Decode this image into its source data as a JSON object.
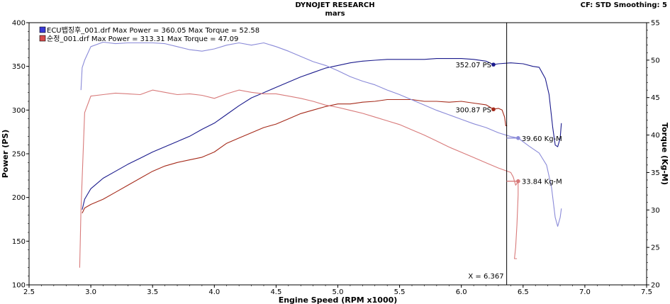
{
  "header": {
    "title": "DYNOJET RESEARCH",
    "subtitle": "mars",
    "settings": "CF: STD  Smoothing: 5"
  },
  "chart_data": {
    "type": "line",
    "xlabel": "Engine Speed (RPM x1000)",
    "ylabel_left": "Power (PS)",
    "ylabel_right": "Torque (Kg-M)",
    "xlim": [
      2.5,
      7.5
    ],
    "ylim_left": [
      100,
      400
    ],
    "ylim_right": [
      20,
      55
    ],
    "x_ticks": [
      "2.5",
      "3.0",
      "3.5",
      "4.0",
      "4.5",
      "5.0",
      "5.5",
      "6.0",
      "6.5",
      "7.0",
      "7.5"
    ],
    "y_ticks_left": [
      "100",
      "150",
      "200",
      "250",
      "300",
      "350",
      "400"
    ],
    "y_ticks_right": [
      "20",
      "25",
      "30",
      "35",
      "40",
      "45",
      "50",
      "55"
    ],
    "grid": true,
    "legend": [
      {
        "marker_color": "#3a3ad8",
        "text": "ECU뱁징후_001.drf Max Power = 360.05    Max Torque = 52.58"
      },
      {
        "marker_color": "#d84a4a",
        "text": "순정_001.drf Max Power = 313.31    Max Torque = 47.09"
      }
    ],
    "cursor": {
      "x": 6.367,
      "label": "X = 6.367"
    },
    "annotations": [
      {
        "text": "352.07 PS",
        "series": "power_ecu",
        "at_x": 6.26,
        "value": 352.07
      },
      {
        "text": "300.87 PS",
        "series": "power_stock",
        "at_x": 6.26,
        "value": 300.87
      },
      {
        "text": "39.60 Kg-M",
        "series": "torque_ecu",
        "at_x": 6.46,
        "value": 39.6
      },
      {
        "text": "33.84 Kg-M",
        "series": "torque_stock",
        "at_x": 6.46,
        "value": 33.84
      }
    ],
    "series": [
      {
        "id": "power_ecu",
        "axis": "left",
        "color": "#1a1a8c",
        "points": [
          [
            2.93,
            186
          ],
          [
            2.95,
            198
          ],
          [
            3.0,
            210
          ],
          [
            3.1,
            222
          ],
          [
            3.2,
            230
          ],
          [
            3.3,
            238
          ],
          [
            3.4,
            245
          ],
          [
            3.5,
            252
          ],
          [
            3.6,
            258
          ],
          [
            3.7,
            264
          ],
          [
            3.8,
            270
          ],
          [
            3.9,
            278
          ],
          [
            4.0,
            285
          ],
          [
            4.1,
            295
          ],
          [
            4.2,
            305
          ],
          [
            4.3,
            314
          ],
          [
            4.4,
            320
          ],
          [
            4.5,
            326
          ],
          [
            4.6,
            332
          ],
          [
            4.7,
            338
          ],
          [
            4.8,
            343
          ],
          [
            4.9,
            348
          ],
          [
            5.0,
            351
          ],
          [
            5.1,
            354
          ],
          [
            5.2,
            356
          ],
          [
            5.3,
            357
          ],
          [
            5.4,
            358
          ],
          [
            5.5,
            358
          ],
          [
            5.6,
            358
          ],
          [
            5.7,
            358
          ],
          [
            5.8,
            359
          ],
          [
            5.9,
            359
          ],
          [
            6.0,
            359
          ],
          [
            6.1,
            358
          ],
          [
            6.2,
            356
          ],
          [
            6.26,
            352
          ],
          [
            6.3,
            353
          ],
          [
            6.4,
            354
          ],
          [
            6.5,
            353
          ],
          [
            6.58,
            350
          ],
          [
            6.63,
            349
          ],
          [
            6.68,
            336
          ],
          [
            6.71,
            318
          ],
          [
            6.74,
            280
          ],
          [
            6.76,
            260
          ],
          [
            6.78,
            258
          ],
          [
            6.8,
            268
          ],
          [
            6.81,
            285
          ]
        ]
      },
      {
        "id": "power_stock",
        "axis": "left",
        "color": "#a52a1a",
        "points": [
          [
            2.93,
            182
          ],
          [
            2.95,
            188
          ],
          [
            3.0,
            192
          ],
          [
            3.1,
            198
          ],
          [
            3.2,
            206
          ],
          [
            3.3,
            214
          ],
          [
            3.4,
            222
          ],
          [
            3.5,
            230
          ],
          [
            3.6,
            236
          ],
          [
            3.7,
            240
          ],
          [
            3.8,
            243
          ],
          [
            3.9,
            246
          ],
          [
            4.0,
            252
          ],
          [
            4.1,
            262
          ],
          [
            4.2,
            268
          ],
          [
            4.3,
            274
          ],
          [
            4.4,
            280
          ],
          [
            4.5,
            284
          ],
          [
            4.6,
            290
          ],
          [
            4.7,
            296
          ],
          [
            4.8,
            300
          ],
          [
            4.9,
            304
          ],
          [
            5.0,
            307
          ],
          [
            5.1,
            307
          ],
          [
            5.2,
            309
          ],
          [
            5.3,
            310
          ],
          [
            5.4,
            312
          ],
          [
            5.5,
            312
          ],
          [
            5.6,
            312
          ],
          [
            5.7,
            310
          ],
          [
            5.8,
            310
          ],
          [
            5.9,
            309
          ],
          [
            6.0,
            310
          ],
          [
            6.1,
            308
          ],
          [
            6.2,
            306
          ],
          [
            6.26,
            301
          ],
          [
            6.3,
            302
          ],
          [
            6.33,
            300
          ],
          [
            6.35,
            292
          ],
          [
            6.36,
            282
          ],
          [
            6.37,
            282
          ]
        ]
      },
      {
        "id": "torque_ecu",
        "axis": "right",
        "color": "#8a8ad8",
        "points": [
          [
            2.92,
            46
          ],
          [
            2.93,
            49
          ],
          [
            2.95,
            50
          ],
          [
            3.0,
            51.8
          ],
          [
            3.1,
            52.4
          ],
          [
            3.2,
            52.2
          ],
          [
            3.3,
            52.3
          ],
          [
            3.4,
            52.3
          ],
          [
            3.5,
            52.3
          ],
          [
            3.6,
            52.2
          ],
          [
            3.7,
            51.8
          ],
          [
            3.8,
            51.4
          ],
          [
            3.9,
            51.2
          ],
          [
            4.0,
            51.5
          ],
          [
            4.1,
            52.0
          ],
          [
            4.2,
            52.3
          ],
          [
            4.3,
            52.0
          ],
          [
            4.4,
            52.3
          ],
          [
            4.5,
            51.8
          ],
          [
            4.6,
            51.2
          ],
          [
            4.7,
            50.5
          ],
          [
            4.8,
            49.8
          ],
          [
            4.9,
            49.3
          ],
          [
            5.0,
            48.6
          ],
          [
            5.1,
            47.8
          ],
          [
            5.2,
            47.2
          ],
          [
            5.3,
            46.7
          ],
          [
            5.4,
            46.0
          ],
          [
            5.5,
            45.4
          ],
          [
            5.6,
            44.7
          ],
          [
            5.7,
            44.0
          ],
          [
            5.8,
            43.3
          ],
          [
            5.9,
            42.7
          ],
          [
            6.0,
            42.1
          ],
          [
            6.1,
            41.5
          ],
          [
            6.2,
            41.0
          ],
          [
            6.3,
            40.3
          ],
          [
            6.4,
            39.8
          ],
          [
            6.46,
            39.6
          ],
          [
            6.55,
            38.5
          ],
          [
            6.63,
            37.6
          ],
          [
            6.69,
            36.0
          ],
          [
            6.73,
            33.0
          ],
          [
            6.76,
            29.0
          ],
          [
            6.78,
            27.8
          ],
          [
            6.8,
            29.0
          ],
          [
            6.81,
            30.2
          ]
        ]
      },
      {
        "id": "torque_stock",
        "axis": "right",
        "color": "#d87a7a",
        "points": [
          [
            2.91,
            22.3
          ],
          [
            2.92,
            30
          ],
          [
            2.95,
            43
          ],
          [
            3.0,
            45.2
          ],
          [
            3.1,
            45.4
          ],
          [
            3.2,
            45.6
          ],
          [
            3.3,
            45.5
          ],
          [
            3.4,
            45.4
          ],
          [
            3.5,
            46.0
          ],
          [
            3.6,
            45.7
          ],
          [
            3.7,
            45.4
          ],
          [
            3.8,
            45.5
          ],
          [
            3.9,
            45.3
          ],
          [
            4.0,
            44.9
          ],
          [
            4.1,
            45.5
          ],
          [
            4.2,
            46.0
          ],
          [
            4.3,
            45.7
          ],
          [
            4.4,
            45.5
          ],
          [
            4.5,
            45.5
          ],
          [
            4.6,
            45.2
          ],
          [
            4.7,
            44.9
          ],
          [
            4.8,
            44.5
          ],
          [
            4.9,
            44.0
          ],
          [
            5.0,
            43.7
          ],
          [
            5.1,
            43.3
          ],
          [
            5.2,
            42.9
          ],
          [
            5.3,
            42.4
          ],
          [
            5.4,
            41.9
          ],
          [
            5.5,
            41.4
          ],
          [
            5.6,
            40.7
          ],
          [
            5.7,
            40.0
          ],
          [
            5.8,
            39.2
          ],
          [
            5.9,
            38.4
          ],
          [
            6.0,
            37.7
          ],
          [
            6.1,
            37.0
          ],
          [
            6.2,
            36.3
          ],
          [
            6.3,
            35.6
          ],
          [
            6.4,
            35.0
          ],
          [
            6.42,
            34.4
          ],
          [
            6.44,
            33.3
          ],
          [
            6.46,
            33.8
          ],
          [
            6.46,
            32.0
          ],
          [
            6.45,
            28.0
          ],
          [
            6.44,
            25.0
          ],
          [
            6.43,
            23.5
          ],
          [
            6.45,
            23.5
          ]
        ]
      }
    ]
  }
}
